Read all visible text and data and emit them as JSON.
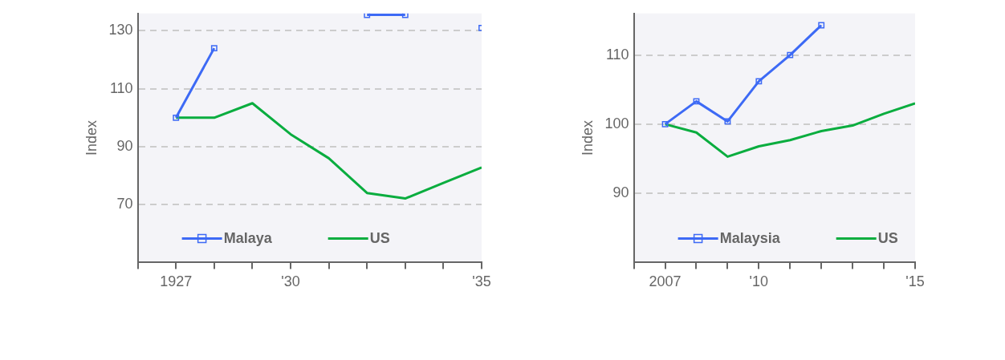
{
  "chart_data": [
    {
      "type": "line",
      "ylabel": "Index",
      "x": [
        1927,
        1928,
        1929,
        1930,
        1931,
        1932,
        1933,
        1934,
        1935
      ],
      "series": [
        {
          "name": "Malaya",
          "color": "#3d6af5",
          "marker": "square",
          "values": [
            100,
            124,
            null,
            null,
            null,
            135.5,
            135.5,
            null,
            131
          ]
        },
        {
          "name": "US",
          "color": "#0aad3f",
          "marker": "none",
          "values": [
            100,
            100,
            105,
            94.3,
            86,
            74,
            72.1,
            77.5,
            82.8
          ]
        }
      ],
      "xlim": [
        1926,
        1935
      ],
      "xticks": [
        {
          "value": 1926,
          "label": null
        },
        {
          "value": 1927,
          "label": "1927"
        },
        {
          "value": 1928,
          "label": null
        },
        {
          "value": 1929,
          "label": null
        },
        {
          "value": 1930,
          "label": "'30"
        },
        {
          "value": 1931,
          "label": null
        },
        {
          "value": 1932,
          "label": null
        },
        {
          "value": 1933,
          "label": null
        },
        {
          "value": 1934,
          "label": null
        },
        {
          "value": 1935,
          "label": "'35"
        }
      ],
      "ylim": [
        50,
        136
      ],
      "yticks": [
        {
          "value": 50,
          "label": null
        },
        70,
        90,
        110,
        130
      ],
      "grid": "y",
      "legend": "bottom",
      "line_style": "solid"
    },
    {
      "type": "line",
      "ylabel": "Index",
      "x": [
        2007,
        2008,
        2009,
        2010,
        2011,
        2012,
        2013,
        2014,
        2015
      ],
      "series": [
        {
          "name": "Malaysia",
          "color": "#3d6af5",
          "marker": "square",
          "values": [
            100,
            103.3,
            100.4,
            106.2,
            110,
            114.3,
            null,
            null,
            null
          ]
        },
        {
          "name": "US",
          "color": "#0aad3f",
          "marker": "none",
          "values": [
            100,
            98.8,
            95.3,
            96.8,
            97.7,
            99,
            99.8,
            101.5,
            103
          ]
        }
      ],
      "xlim": [
        2006,
        2015
      ],
      "xticks": [
        {
          "value": 2006,
          "label": null
        },
        {
          "value": 2007,
          "label": "2007"
        },
        {
          "value": 2008,
          "label": null
        },
        {
          "value": 2009,
          "label": null
        },
        {
          "value": 2010,
          "label": "'10"
        },
        {
          "value": 2011,
          "label": null
        },
        {
          "value": 2012,
          "label": null
        },
        {
          "value": 2013,
          "label": null
        },
        {
          "value": 2014,
          "label": null
        },
        {
          "value": 2015,
          "label": "'15"
        }
      ],
      "ylim": [
        80,
        116
      ],
      "yticks": [
        {
          "value": 80,
          "label": null
        },
        90,
        100,
        110
      ],
      "grid": "y",
      "legend": "bottom",
      "line_style": "solid"
    }
  ]
}
